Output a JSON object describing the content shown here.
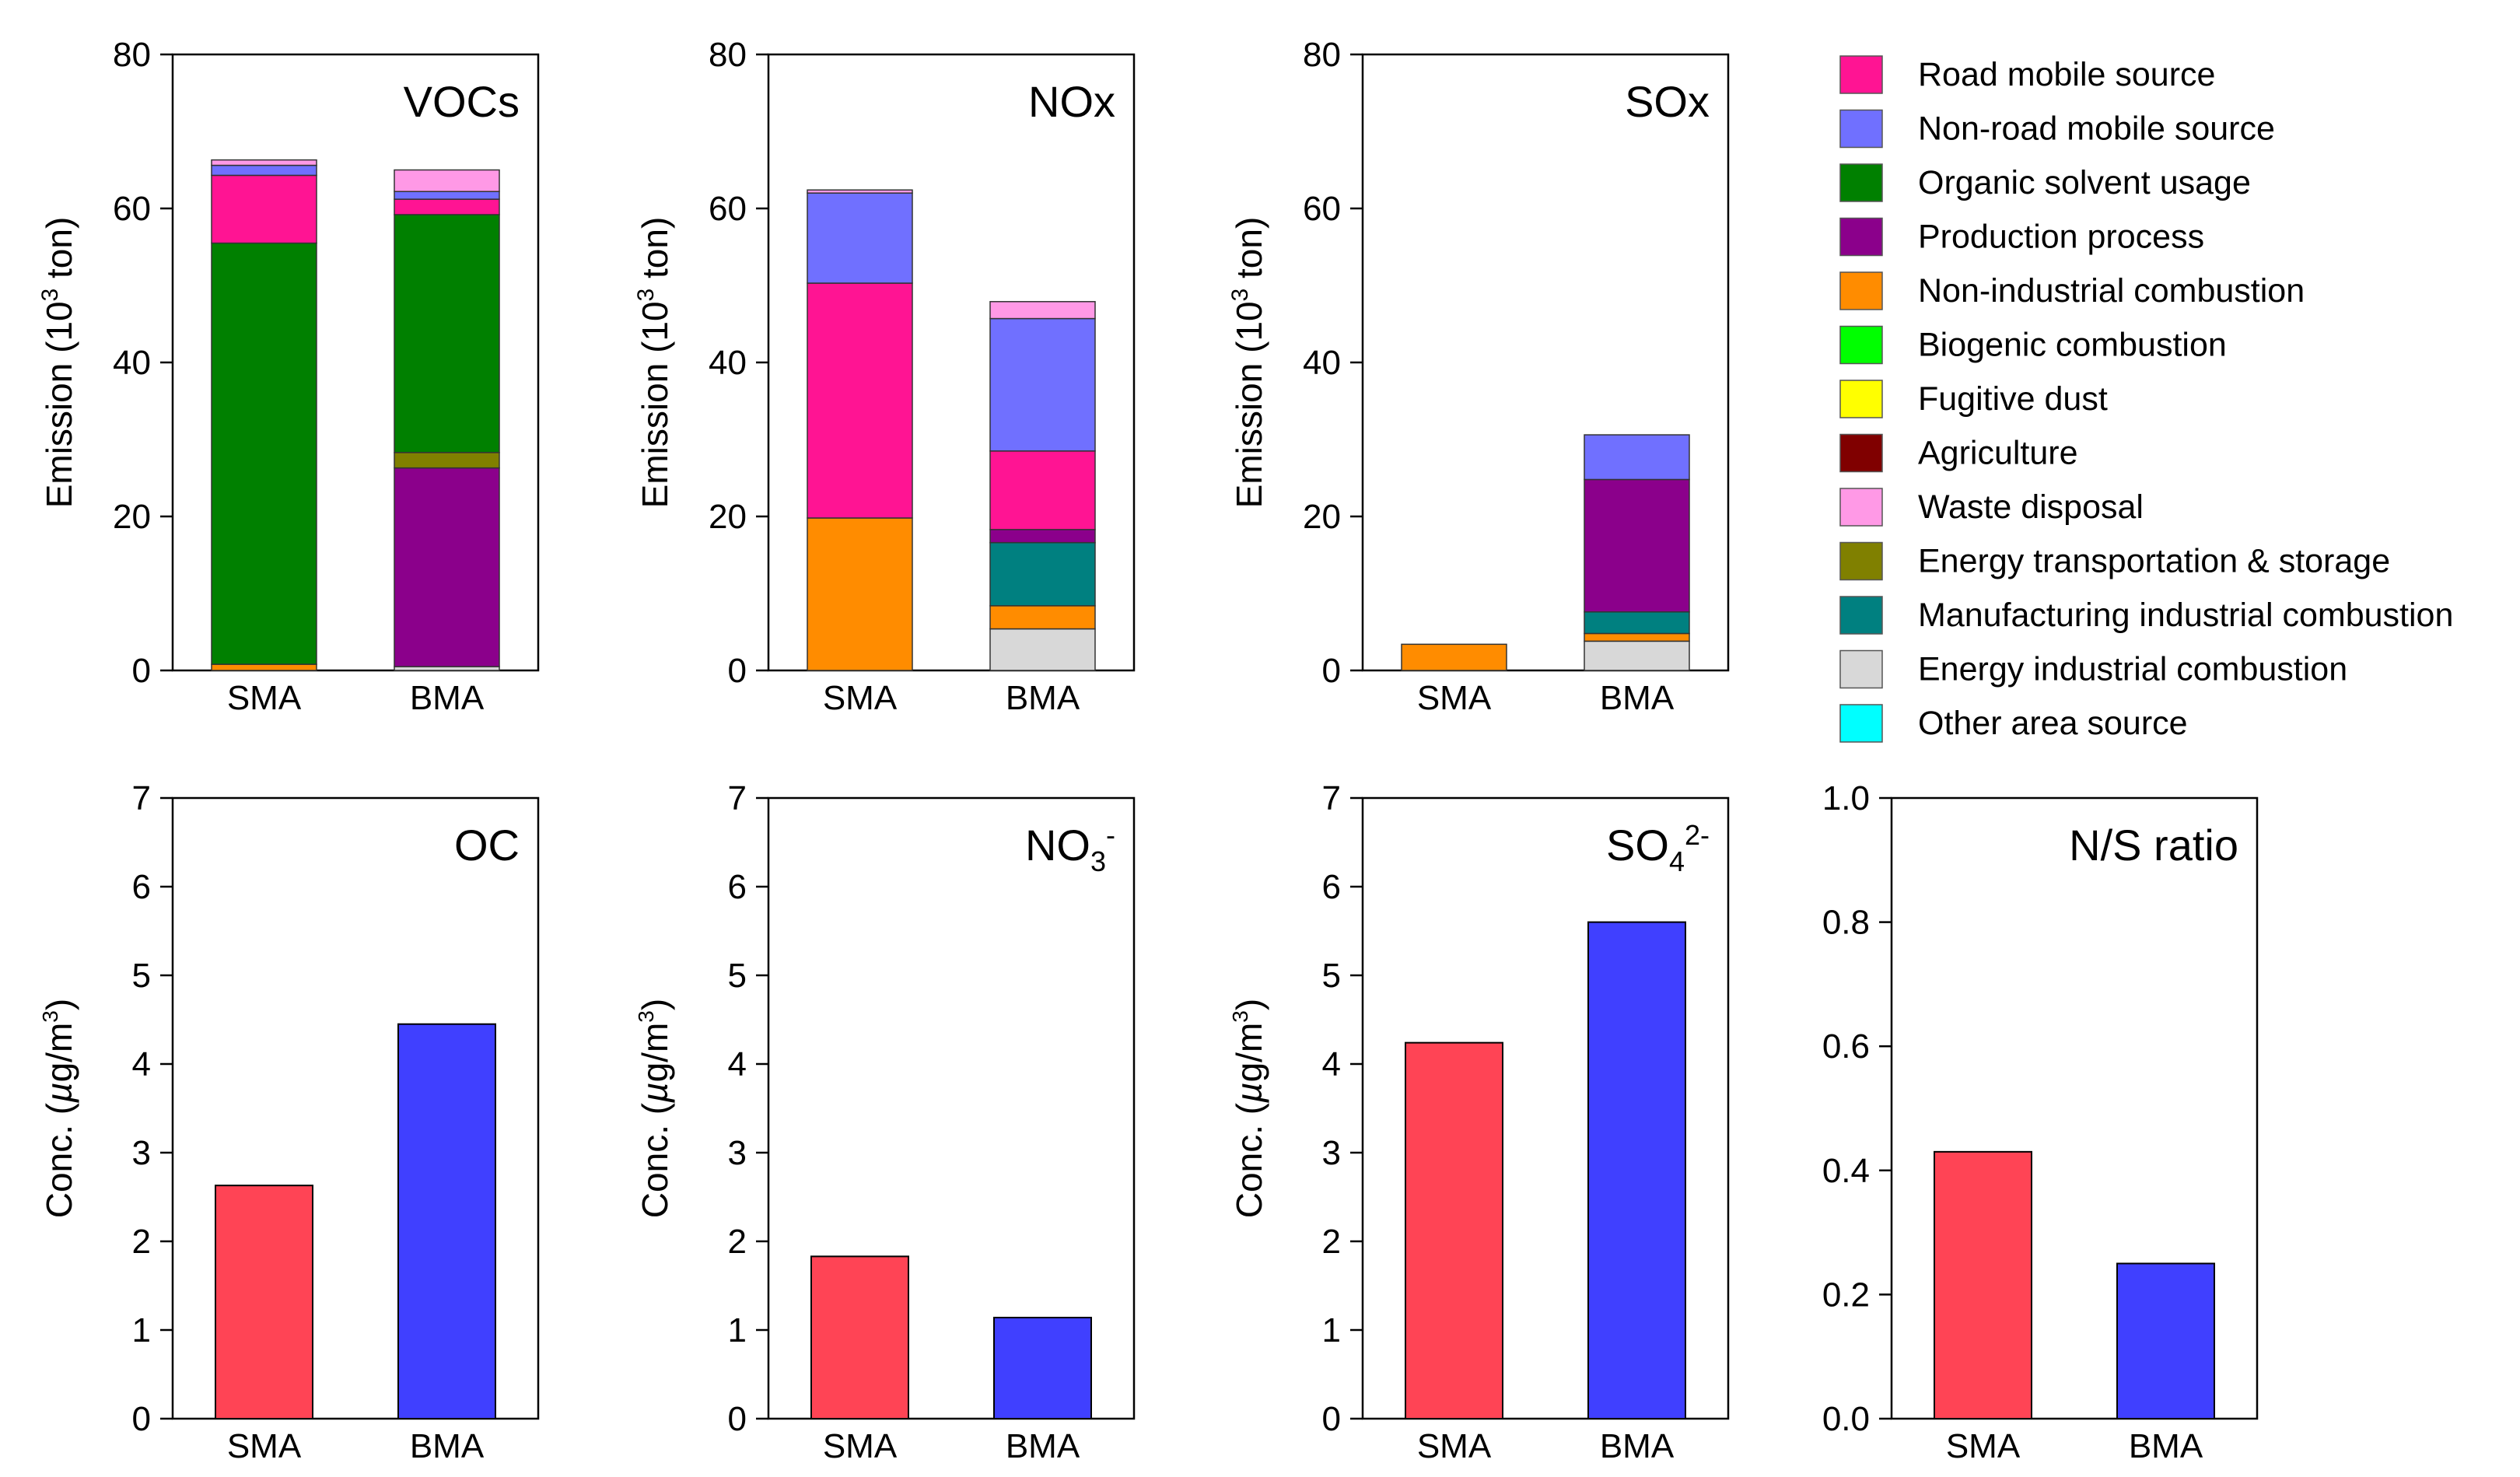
{
  "chart_data": [
    {
      "type": "bar",
      "stacked": true,
      "title": "VOCs",
      "ylabel_pre": "Emission (10",
      "ylabel_sup": "3",
      "ylabel_post": " ton)",
      "ylim": [
        0,
        80
      ],
      "yticks": [
        0,
        20,
        40,
        60,
        80
      ],
      "categories": [
        "SMA",
        "BMA"
      ],
      "series": [
        {
          "name": "Energy industrial combustion",
          "values": [
            0.0,
            0.5
          ]
        },
        {
          "name": "Non-industrial combustion",
          "values": [
            0.8,
            0.0
          ]
        },
        {
          "name": "Production process",
          "values": [
            0.0,
            25.8
          ]
        },
        {
          "name": "Energy transportation & storage",
          "values": [
            0.0,
            2.0
          ]
        },
        {
          "name": "Organic solvent usage",
          "values": [
            54.7,
            30.9
          ]
        },
        {
          "name": "Road mobile source",
          "values": [
            8.8,
            2.0
          ]
        },
        {
          "name": "Non-road mobile source",
          "values": [
            1.3,
            1.0
          ]
        },
        {
          "name": "Waste disposal",
          "values": [
            0.7,
            2.8
          ]
        }
      ]
    },
    {
      "type": "bar",
      "stacked": true,
      "title": "NOx",
      "ylabel_pre": "Emission (10",
      "ylabel_sup": "3",
      "ylabel_post": " ton)",
      "ylim": [
        0,
        80
      ],
      "yticks": [
        0,
        20,
        40,
        60,
        80
      ],
      "categories": [
        "SMA",
        "BMA"
      ],
      "series": [
        {
          "name": "Energy industrial combustion",
          "values": [
            0.0,
            5.4
          ]
        },
        {
          "name": "Non-industrial combustion",
          "values": [
            19.8,
            3.0
          ]
        },
        {
          "name": "Manufacturing industrial combustion",
          "values": [
            0.0,
            8.2
          ]
        },
        {
          "name": "Production process",
          "values": [
            0.0,
            1.7
          ]
        },
        {
          "name": "Road mobile source",
          "values": [
            30.5,
            10.2
          ]
        },
        {
          "name": "Non-road mobile source",
          "values": [
            11.7,
            17.2
          ]
        },
        {
          "name": "Waste disposal",
          "values": [
            0.4,
            2.2
          ]
        }
      ]
    },
    {
      "type": "bar",
      "stacked": true,
      "title": "SOx",
      "ylabel_pre": "Emission (10",
      "ylabel_sup": "3",
      "ylabel_post": " ton)",
      "ylim": [
        0,
        80
      ],
      "yticks": [
        0,
        20,
        40,
        60,
        80
      ],
      "categories": [
        "SMA",
        "BMA"
      ],
      "series": [
        {
          "name": "Energy industrial combustion",
          "values": [
            0.0,
            3.8
          ]
        },
        {
          "name": "Non-industrial combustion",
          "values": [
            3.4,
            1.0
          ]
        },
        {
          "name": "Manufacturing industrial combustion",
          "values": [
            0.0,
            2.8
          ]
        },
        {
          "name": "Production process",
          "values": [
            0.0,
            17.2
          ]
        },
        {
          "name": "Non-road mobile source",
          "values": [
            0.0,
            5.8
          ]
        }
      ]
    },
    {
      "type": "bar",
      "title": "OC",
      "ylabel_pre": "Conc. (",
      "ylabel_mu": "µ",
      "ylabel_post": "g/m",
      "ylabel_sup": "3",
      "ylabel_end": ")",
      "ylim": [
        0,
        7
      ],
      "yticks": [
        0,
        1,
        2,
        3,
        4,
        5,
        6,
        7
      ],
      "categories": [
        "SMA",
        "BMA"
      ],
      "values": [
        2.63,
        4.45
      ]
    },
    {
      "type": "bar",
      "title_base": "NO",
      "title_sub": "3",
      "title_sup": "-",
      "ylabel_pre": "Conc. (",
      "ylabel_mu": "µ",
      "ylabel_post": "g/m",
      "ylabel_sup": "3",
      "ylabel_end": ")",
      "ylim": [
        0,
        7
      ],
      "yticks": [
        0,
        1,
        2,
        3,
        4,
        5,
        6,
        7
      ],
      "categories": [
        "SMA",
        "BMA"
      ],
      "values": [
        1.83,
        1.14
      ]
    },
    {
      "type": "bar",
      "title_base": "SO",
      "title_sub": "4",
      "title_sup": "2-",
      "ylabel_pre": "Conc. (",
      "ylabel_mu": "µ",
      "ylabel_post": "g/m",
      "ylabel_sup": "3",
      "ylabel_end": ")",
      "ylim": [
        0,
        7
      ],
      "yticks": [
        0,
        1,
        2,
        3,
        4,
        5,
        6,
        7
      ],
      "categories": [
        "SMA",
        "BMA"
      ],
      "values": [
        4.24,
        5.6
      ]
    },
    {
      "type": "bar",
      "title": "N/S ratio",
      "ylim": [
        0,
        1.0
      ],
      "yticks": [
        "0.0",
        "0.2",
        "0.4",
        "0.6",
        "0.8",
        "1.0"
      ],
      "categories": [
        "SMA",
        "BMA"
      ],
      "values": [
        0.43,
        0.25
      ]
    }
  ],
  "legend": [
    {
      "name": "Road mobile source",
      "color": "#ff1493"
    },
    {
      "name": "Non-road mobile source",
      "color": "#7070ff"
    },
    {
      "name": "Organic solvent usage",
      "color": "#008000"
    },
    {
      "name": "Production process",
      "color": "#8b008b"
    },
    {
      "name": "Non-industrial combustion",
      "color": "#ff8c00"
    },
    {
      "name": "Biogenic combustion",
      "color": "#00ff00"
    },
    {
      "name": "Fugitive dust",
      "color": "#ffff00"
    },
    {
      "name": "Agriculture",
      "color": "#800000"
    },
    {
      "name": "Waste disposal",
      "color": "#ff99e6"
    },
    {
      "name": "Energy transportation & storage",
      "color": "#808000"
    },
    {
      "name": "Manufacturing industrial combustion",
      "color": "#008080"
    },
    {
      "name": "Energy industrial combustion",
      "color": "#d8d8d8"
    },
    {
      "name": "Other area source",
      "color": "#00ffff"
    }
  ],
  "colors": {
    "Road mobile source": "#ff1493",
    "Non-road mobile source": "#7070ff",
    "Organic solvent usage": "#008000",
    "Production process": "#8b008b",
    "Non-industrial combustion": "#ff8c00",
    "Biogenic combustion": "#00ff00",
    "Fugitive dust": "#ffff00",
    "Agriculture": "#800000",
    "Waste disposal": "#ff99e6",
    "Energy transportation & storage": "#808000",
    "Manufacturing industrial combustion": "#008080",
    "Energy industrial combustion": "#d8d8d8",
    "Other area source": "#00ffff",
    "SMA": "#ff4455",
    "BMA": "#4040ff"
  }
}
